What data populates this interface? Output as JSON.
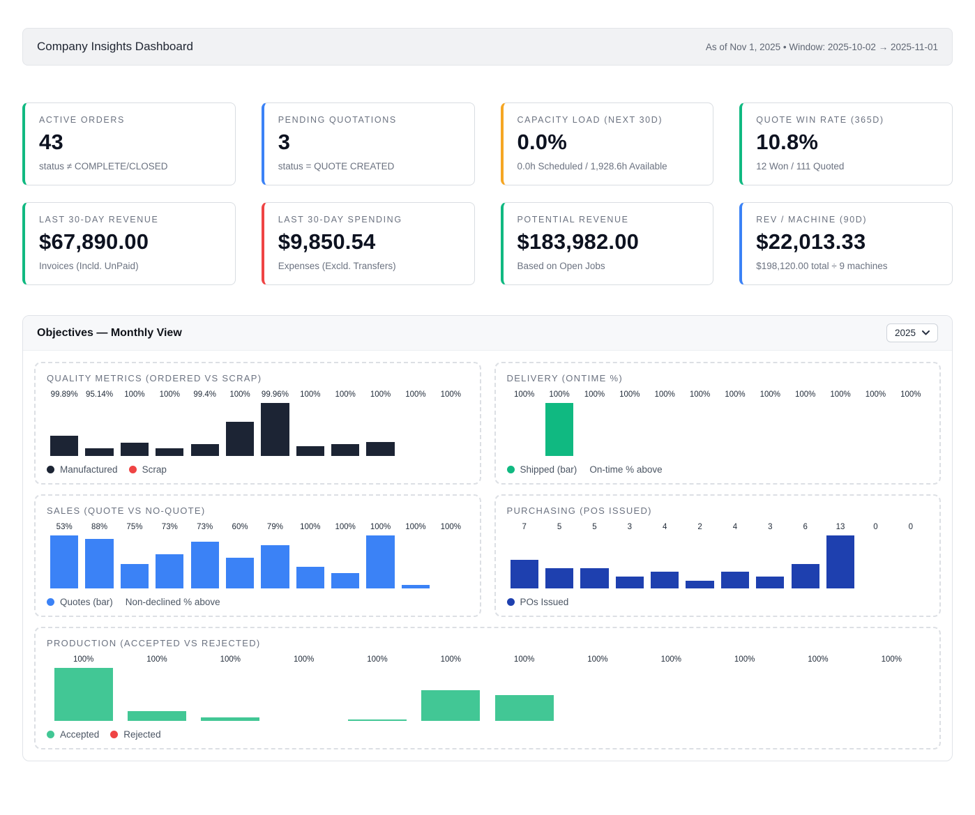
{
  "header": {
    "title": "Company Insights Dashboard",
    "meta": "As of Nov 1, 2025 • Window: 2025-10-02 → 2025-11-01"
  },
  "kpis": [
    {
      "label": "ACTIVE ORDERS",
      "value": "43",
      "sub": "status ≠ COMPLETE/CLOSED",
      "accent": "#10b981"
    },
    {
      "label": "PENDING QUOTATIONS",
      "value": "3",
      "sub": "status = QUOTE CREATED",
      "accent": "#3b82f6"
    },
    {
      "label": "CAPACITY LOAD (NEXT 30D)",
      "value": "0.0%",
      "sub": "0.0h Scheduled / 1,928.6h Available",
      "accent": "#f5a623"
    },
    {
      "label": "QUOTE WIN RATE (365D)",
      "value": "10.8%",
      "sub": "12 Won / 111 Quoted",
      "accent": "#10b981"
    },
    {
      "label": "LAST 30-DAY REVENUE",
      "value": "$67,890.00",
      "sub": "Invoices (Incld. UnPaid)",
      "accent": "#10b981"
    },
    {
      "label": "LAST 30-DAY SPENDING",
      "value": "$9,850.54",
      "sub": "Expenses (Excld. Transfers)",
      "accent": "#ef4444"
    },
    {
      "label": "POTENTIAL REVENUE",
      "value": "$183,982.00",
      "sub": "Based on Open Jobs",
      "accent": "#10b981"
    },
    {
      "label": "REV / MACHINE (90D)",
      "value": "$22,013.33",
      "sub": "$198,120.00 total ÷ 9 machines",
      "accent": "#3b82f6"
    }
  ],
  "objectives": {
    "title": "Objectives — Monthly View",
    "year": "2025"
  },
  "chart_data": [
    {
      "type": "bar",
      "title": "QUALITY METRICS (ORDERED VS SCRAP)",
      "value_labels": [
        "99.89%",
        "95.14%",
        "100%",
        "100%",
        "99.4%",
        "100%",
        "99.96%",
        "100%",
        "100%",
        "100%",
        "100%",
        "100%"
      ],
      "bar_color": "#1c2434",
      "bar_heights_pct_of_max": [
        38,
        15,
        25,
        15,
        23,
        64,
        100,
        19,
        23,
        26,
        0,
        0
      ],
      "legend": [
        {
          "label": "Manufactured",
          "color": "#1c2434"
        },
        {
          "label": "Scrap",
          "color": "#ef4444"
        }
      ],
      "note": ""
    },
    {
      "type": "bar",
      "title": "DELIVERY (ONTIME %)",
      "value_labels": [
        "100%",
        "100%",
        "100%",
        "100%",
        "100%",
        "100%",
        "100%",
        "100%",
        "100%",
        "100%",
        "100%",
        "100%"
      ],
      "bar_color": "#10b981",
      "bar_heights_pct_of_max": [
        0,
        100,
        0,
        0,
        0,
        0,
        0,
        0,
        0,
        0,
        0,
        0
      ],
      "legend": [
        {
          "label": "Shipped (bar)",
          "color": "#10b981"
        }
      ],
      "note": "On-time % above"
    },
    {
      "type": "bar",
      "title": "SALES (QUOTE VS NO-QUOTE)",
      "value_labels": [
        "53%",
        "88%",
        "75%",
        "73%",
        "73%",
        "60%",
        "79%",
        "100%",
        "100%",
        "100%",
        "100%",
        "100%"
      ],
      "bar_color": "#3b82f6",
      "bar_heights_pct_of_max": [
        100,
        94,
        46,
        65,
        88,
        58,
        82,
        41,
        29,
        100,
        7,
        0
      ],
      "legend": [
        {
          "label": "Quotes (bar)",
          "color": "#3b82f6"
        }
      ],
      "note": "Non-declined % above"
    },
    {
      "type": "bar",
      "title": "PURCHASING (POS ISSUED)",
      "value_labels": [
        "7",
        "5",
        "5",
        "3",
        "4",
        "2",
        "4",
        "3",
        "6",
        "13",
        "0",
        "0"
      ],
      "values": [
        7,
        5,
        5,
        3,
        4,
        2,
        4,
        3,
        6,
        13,
        0,
        0
      ],
      "bar_color": "#1e40af",
      "bar_heights_pct_of_max": [
        54,
        38,
        38,
        23,
        31,
        15,
        31,
        23,
        46,
        100,
        0,
        0
      ],
      "legend": [
        {
          "label": "POs Issued",
          "color": "#1e40af"
        }
      ],
      "note": ""
    },
    {
      "type": "bar",
      "title": "PRODUCTION (ACCEPTED VS REJECTED)",
      "value_labels": [
        "100%",
        "100%",
        "100%",
        "100%",
        "100%",
        "100%",
        "100%",
        "100%",
        "100%",
        "100%",
        "100%",
        "100%"
      ],
      "bar_color": "#42c795",
      "bar_heights_pct_of_max": [
        100,
        19,
        6,
        0,
        2,
        58,
        49,
        0,
        0,
        0,
        0,
        0
      ],
      "legend": [
        {
          "label": "Accepted",
          "color": "#42c795"
        },
        {
          "label": "Rejected",
          "color": "#ef4444"
        }
      ],
      "note": ""
    }
  ]
}
